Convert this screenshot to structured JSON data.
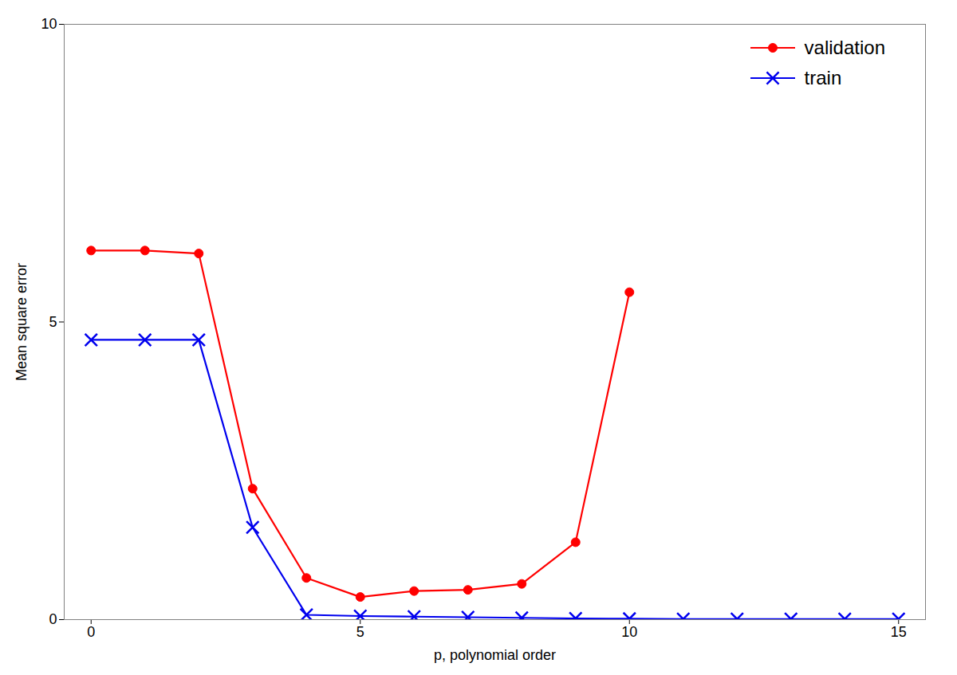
{
  "chart_data": {
    "type": "line",
    "xlabel": "p, polynomial order",
    "ylabel": "Mean square error",
    "series": [
      {
        "name": "validation",
        "color": "#ff0000",
        "marker": "circle",
        "x": [
          0,
          1,
          2,
          3,
          4,
          5,
          6,
          7,
          8,
          9,
          10
        ],
        "values": [
          6.2,
          6.2,
          6.15,
          2.2,
          0.7,
          0.38,
          0.48,
          0.5,
          0.6,
          1.3,
          5.5
        ]
      },
      {
        "name": "train",
        "color": "#0000ee",
        "marker": "x",
        "x": [
          0,
          1,
          2,
          3,
          4,
          5,
          6,
          7,
          8,
          9,
          10,
          11,
          12,
          13,
          14,
          15
        ],
        "values": [
          4.7,
          4.7,
          4.7,
          1.55,
          0.08,
          0.06,
          0.05,
          0.04,
          0.03,
          0.02,
          0.015,
          0.01,
          0.01,
          0.01,
          0.01,
          0.01
        ]
      }
    ],
    "xlim": [
      -0.5,
      15.5
    ],
    "ylim": [
      0,
      10
    ],
    "xticks": [
      0,
      5,
      10,
      15
    ],
    "yticks": [
      0,
      5,
      10
    ],
    "grid": false,
    "legend": "upper right"
  }
}
